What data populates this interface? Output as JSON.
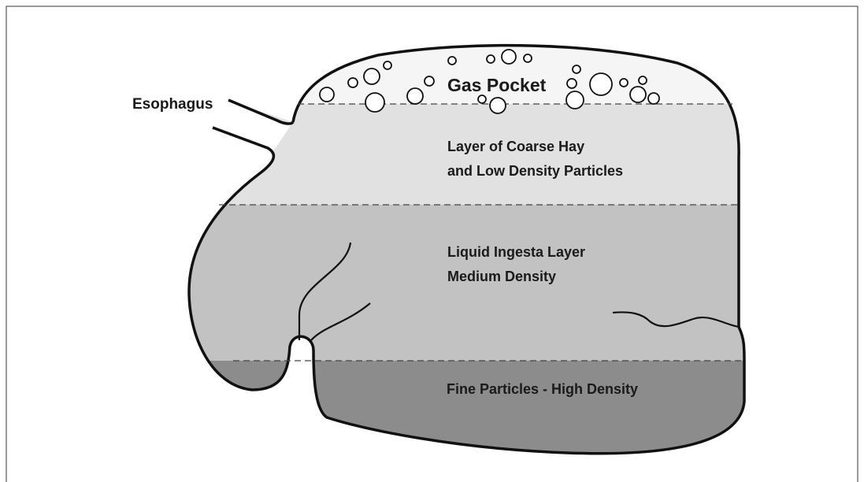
{
  "labels": {
    "esophagus": "Esophagus",
    "gas_pocket": "Gas Pocket"
  },
  "layers": [
    {
      "lines": [
        "Layer of Coarse Hay",
        "and Low Density Particles"
      ]
    },
    {
      "lines": [
        "Liquid Ingesta Layer",
        "Medium Density"
      ]
    },
    {
      "lines": [
        "Fine Particles - High Density"
      ]
    }
  ]
}
